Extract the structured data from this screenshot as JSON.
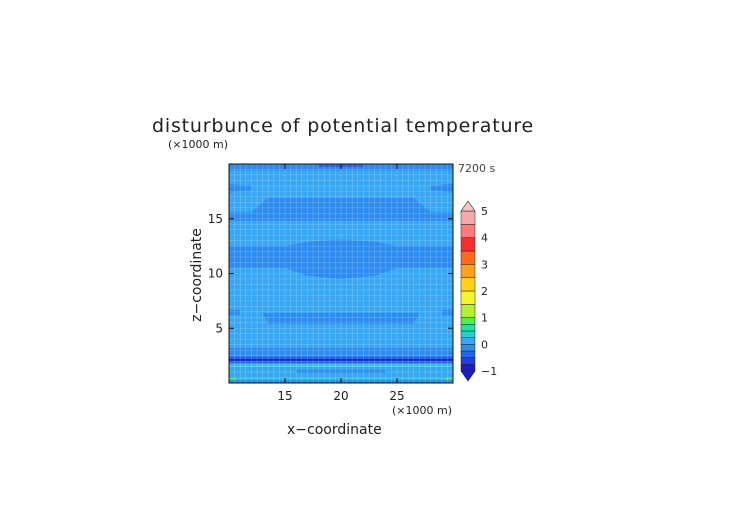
{
  "chart_data": {
    "type": "heatmap",
    "title": "disturbunce of potential temperature",
    "time_label": "7200 s",
    "xlabel": "x−coordinate",
    "ylabel": "z−coordinate",
    "x_multiplier": "(×1000 m)",
    "y_multiplier": "(×1000 m)",
    "xlim": [
      10,
      30
    ],
    "ylim": [
      0,
      20
    ],
    "x_ticks": [
      15,
      20,
      25
    ],
    "y_ticks": [
      5,
      10,
      15
    ],
    "x_tick_labels": [
      "15",
      "20",
      "25"
    ],
    "y_tick_labels": [
      "5",
      "10",
      "15"
    ],
    "grid": true,
    "colorbar": {
      "min": -1,
      "max": 5,
      "levels": [
        -1,
        -0.75,
        -0.5,
        -0.25,
        0,
        0.25,
        0.5,
        0.75,
        1,
        1.5,
        2,
        2.5,
        3,
        3.5,
        4,
        4.5,
        5
      ],
      "colors": [
        "#1a1ad0",
        "#1f40e0",
        "#2466e8",
        "#2e8cf0",
        "#38a8f4",
        "#2ccfd0",
        "#19e6a0",
        "#4df04d",
        "#b3f02e",
        "#f5f52e",
        "#ffd11a",
        "#ffa21a",
        "#ff6a1a",
        "#f52e2e",
        "#ff7a7a",
        "#f7a8a8"
      ],
      "tick_values": [
        -1,
        0,
        1,
        2,
        3,
        4,
        5
      ],
      "tick_labels": [
        "−1",
        "0",
        "1",
        "2",
        "3",
        "4",
        "5"
      ],
      "extend_min_color": "#1a1ad0",
      "extend_max_color": "#f2c6c6"
    },
    "regions": [
      {
        "value": -0.1,
        "points": [
          [
            10,
            20
          ],
          [
            30,
            20
          ],
          [
            30,
            19.4
          ],
          [
            10,
            19.4
          ]
        ]
      },
      {
        "value": -0.3,
        "points": [
          [
            18,
            20
          ],
          [
            22,
            20
          ],
          [
            22,
            19.7
          ],
          [
            18,
            19.7
          ]
        ]
      },
      {
        "value": -0.1,
        "points": [
          [
            10,
            18.2
          ],
          [
            12,
            18.0
          ],
          [
            12,
            17.6
          ],
          [
            10,
            17.4
          ]
        ]
      },
      {
        "value": -0.1,
        "points": [
          [
            30,
            18.2
          ],
          [
            28,
            18.0
          ],
          [
            28,
            17.6
          ],
          [
            30,
            17.4
          ]
        ]
      },
      {
        "value": -0.1,
        "points": [
          [
            10,
            15.6
          ],
          [
            12,
            15.6
          ],
          [
            13.5,
            16.9
          ],
          [
            26.5,
            16.9
          ],
          [
            28,
            15.6
          ],
          [
            30,
            15.6
          ],
          [
            30,
            14.8
          ],
          [
            10,
            14.8
          ]
        ]
      },
      {
        "value": -0.1,
        "points": [
          [
            10,
            12.5
          ],
          [
            15,
            12.5
          ],
          [
            17,
            12.9
          ],
          [
            20,
            13.1
          ],
          [
            23,
            12.9
          ],
          [
            25,
            12.5
          ],
          [
            30,
            12.5
          ],
          [
            30,
            10.5
          ],
          [
            25,
            10.5
          ],
          [
            23,
            9.8
          ],
          [
            20,
            9.5
          ],
          [
            17,
            9.8
          ],
          [
            15,
            10.5
          ],
          [
            10,
            10.5
          ]
        ]
      },
      {
        "value": -0.1,
        "points": [
          [
            10,
            6.7
          ],
          [
            11,
            6.7
          ],
          [
            11,
            6.2
          ],
          [
            10,
            6.2
          ]
        ]
      },
      {
        "value": -0.1,
        "points": [
          [
            30,
            6.7
          ],
          [
            29,
            6.7
          ],
          [
            29,
            6.2
          ],
          [
            30,
            6.2
          ]
        ]
      },
      {
        "value": -0.1,
        "points": [
          [
            13,
            6.4
          ],
          [
            27,
            6.4
          ],
          [
            26.5,
            5.4
          ],
          [
            13.5,
            5.4
          ]
        ]
      },
      {
        "value": -0.1,
        "points": [
          [
            10,
            3.2
          ],
          [
            30,
            3.2
          ],
          [
            30,
            2.5
          ],
          [
            10,
            2.5
          ]
        ]
      },
      {
        "value": -0.4,
        "points": [
          [
            10,
            2.45
          ],
          [
            30,
            2.45
          ],
          [
            30,
            2.2
          ],
          [
            10,
            2.2
          ]
        ]
      },
      {
        "value": -0.9,
        "points": [
          [
            10,
            2.2
          ],
          [
            30,
            2.2
          ],
          [
            30,
            2.0
          ],
          [
            10,
            2.0
          ]
        ]
      },
      {
        "value": -0.5,
        "points": [
          [
            10,
            2.0
          ],
          [
            30,
            2.0
          ],
          [
            30,
            1.8
          ],
          [
            10,
            1.8
          ]
        ]
      },
      {
        "value": 0.35,
        "points": [
          [
            10,
            1.7
          ],
          [
            30,
            1.7
          ],
          [
            30,
            1.5
          ],
          [
            10,
            1.5
          ]
        ]
      },
      {
        "value": 0.6,
        "points": [
          [
            12,
            1.65
          ],
          [
            28,
            1.65
          ],
          [
            28,
            1.55
          ],
          [
            12,
            1.55
          ]
        ]
      },
      {
        "value": -0.1,
        "points": [
          [
            16,
            1.2
          ],
          [
            24,
            1.2
          ],
          [
            24,
            0.9
          ],
          [
            16,
            0.9
          ]
        ]
      },
      {
        "value": 0.35,
        "points": [
          [
            10,
            0.45
          ],
          [
            30,
            0.45
          ],
          [
            30,
            0.3
          ],
          [
            10,
            0.3
          ]
        ]
      },
      {
        "value": 0.9,
        "points": [
          [
            10,
            0.45
          ],
          [
            10.7,
            0.45
          ],
          [
            10.7,
            0.05
          ],
          [
            10,
            0.05
          ]
        ]
      },
      {
        "value": 0.9,
        "points": [
          [
            29.3,
            0.45
          ],
          [
            30,
            0.45
          ],
          [
            30,
            0.05
          ],
          [
            29.3,
            0.05
          ]
        ]
      },
      {
        "value": -0.1,
        "points": [
          [
            10,
            0.3
          ],
          [
            30,
            0.3
          ],
          [
            30,
            0
          ],
          [
            10,
            0
          ]
        ]
      }
    ],
    "background_value": 0.1
  }
}
